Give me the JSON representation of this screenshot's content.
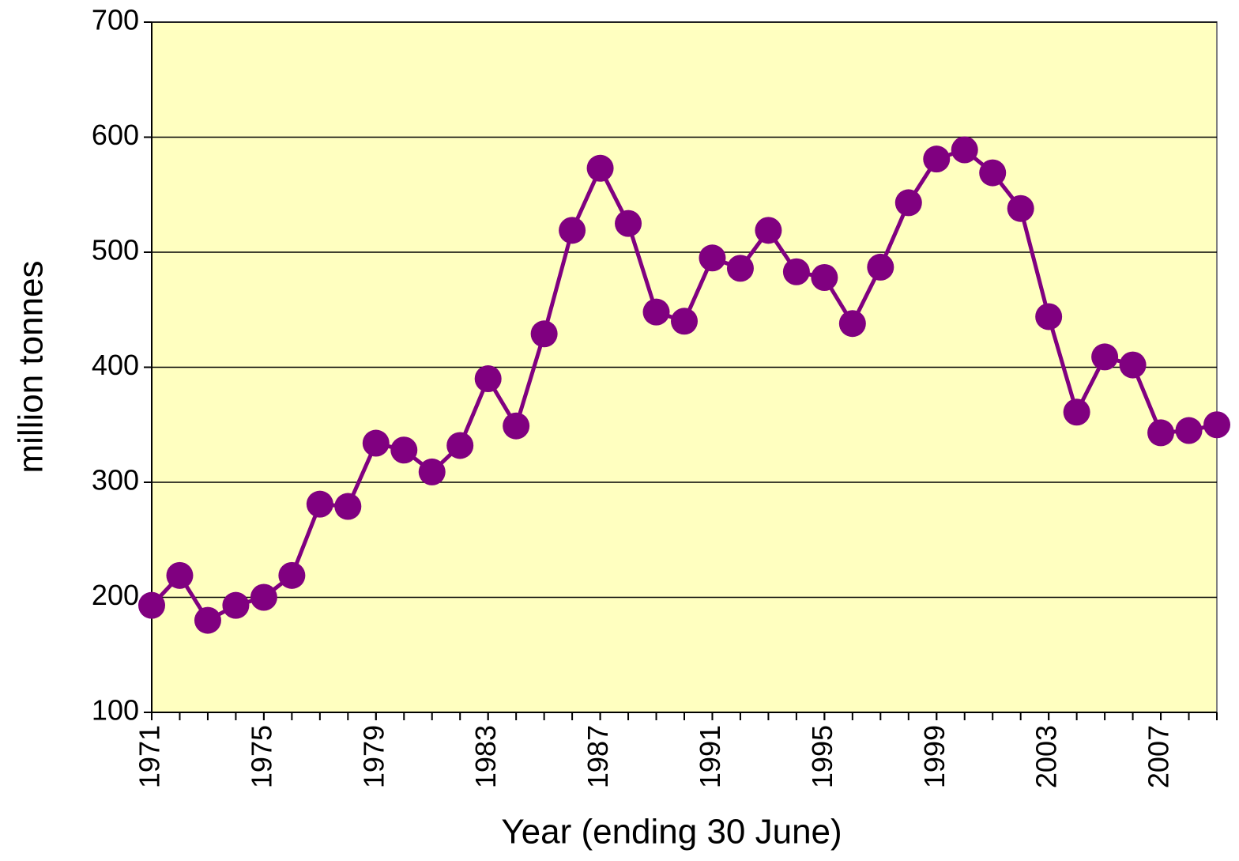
{
  "chart_data": {
    "type": "line",
    "xlabel": "Year (ending 30 June)",
    "ylabel": "million tonnes",
    "x": [
      1971,
      1972,
      1973,
      1974,
      1975,
      1976,
      1977,
      1978,
      1979,
      1980,
      1981,
      1982,
      1983,
      1984,
      1985,
      1986,
      1987,
      1988,
      1989,
      1990,
      1991,
      1992,
      1993,
      1994,
      1995,
      1996,
      1997,
      1998,
      1999,
      2000,
      2001,
      2002,
      2003,
      2004,
      2005,
      2006,
      2007,
      2008,
      2009
    ],
    "series": [
      {
        "color": "#800080",
        "values": [
          193,
          219,
          180,
          193,
          200,
          219,
          281,
          279,
          334,
          328,
          309,
          332,
          390,
          349,
          429,
          519,
          573,
          525,
          448,
          440,
          495,
          486,
          519,
          483,
          478,
          438,
          487,
          543,
          581,
          589,
          569,
          538,
          444,
          361,
          409,
          402,
          343,
          345,
          350
        ]
      }
    ],
    "xlim": [
      1971,
      2009
    ],
    "xticks": [
      1971,
      1975,
      1979,
      1983,
      1987,
      1991,
      1995,
      1999,
      2003,
      2007
    ],
    "ylim": [
      100,
      700
    ],
    "yticks": [
      100,
      200,
      300,
      400,
      500,
      600,
      700
    ],
    "grid": true,
    "background": "#ffffc0"
  }
}
